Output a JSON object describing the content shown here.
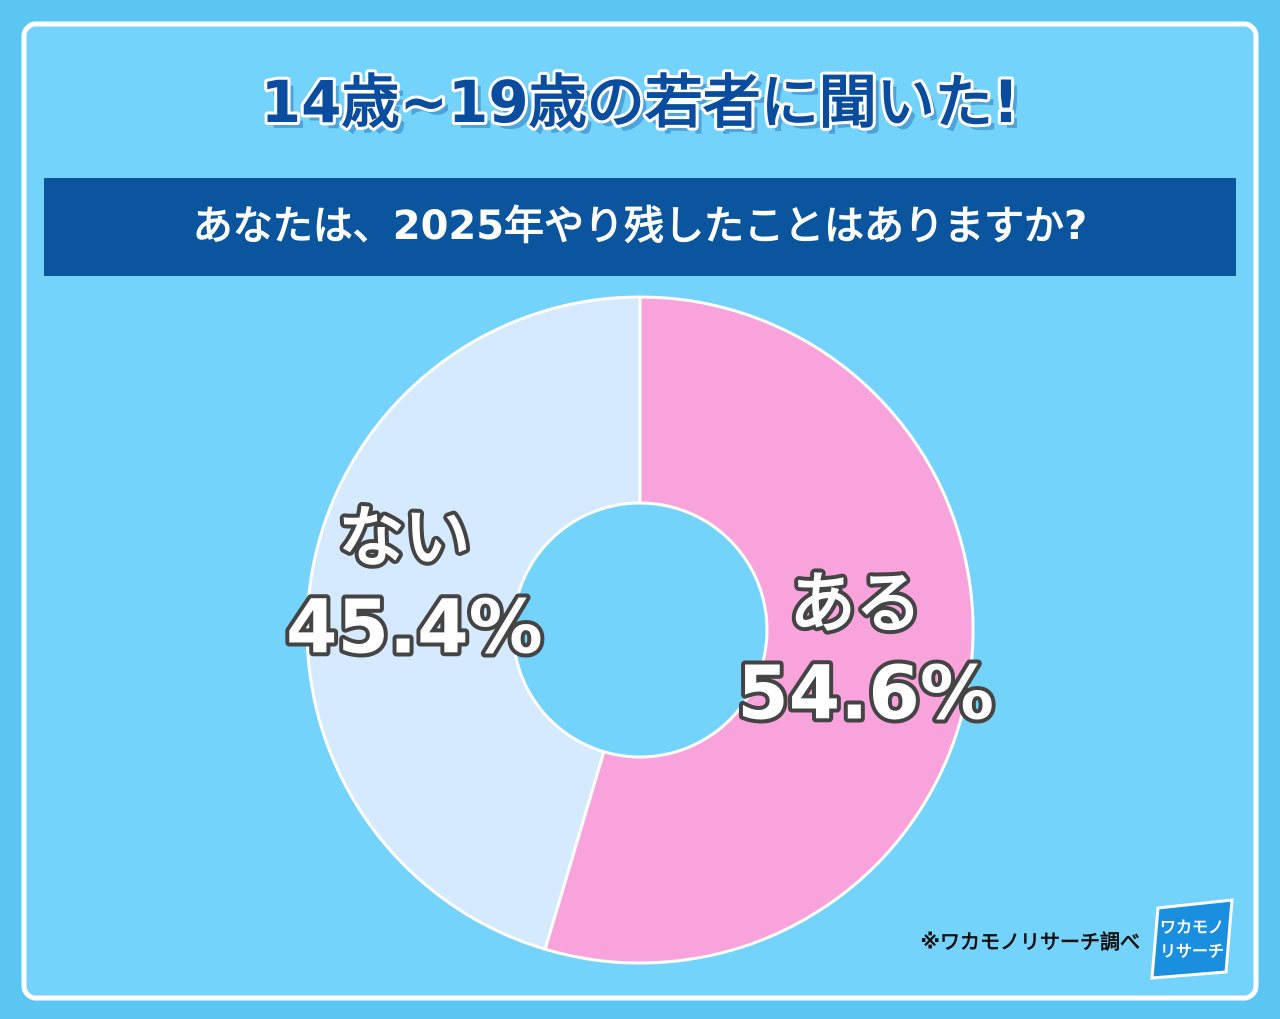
{
  "chart_data": {
    "type": "donut",
    "title": "14歳~19歳の若者に聞いた!",
    "subtitle": "あなたは、2025年やり残したことはありますか?",
    "categories": [
      "ある",
      "ない"
    ],
    "values": [
      54.6,
      45.4
    ],
    "value_labels": [
      "54.6%",
      "45.4%"
    ],
    "colors": [
      "#f9a3dc",
      "#d6eaff"
    ],
    "source": "※ワカモノリサーチ調べ",
    "logo": [
      "ワカモノ",
      "リサーチ"
    ]
  }
}
